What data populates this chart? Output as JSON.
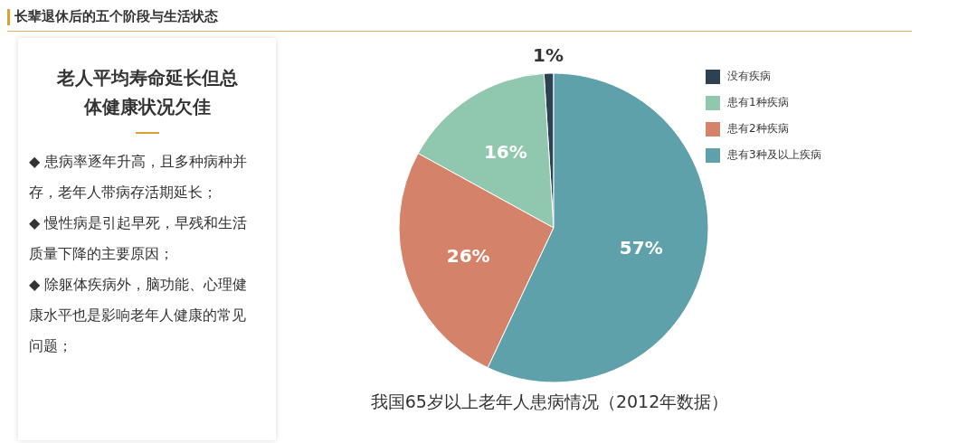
{
  "chart_data": [
    {
      "type": "other",
      "title": "长辈退休后的五个阶段与生活状态"
    },
    {
      "type": "other",
      "title": "老人平均寿命延长但总体健康状况欠佳",
      "annotations": [
        "◆ 患病率逐年升高，且多种病种并存，老年人带病存活期延长；",
        "◆ 慢性病是引起早死，早残和生活质量下降的主要原因；",
        "◆ 除躯体疾病外，脑功能、心理健康水平也是影响老年人健康的常见问题；"
      ]
    },
    {
      "type": "pie",
      "title": "我国65岁以上老年人患病情况（2012年数据）",
      "categories": [
        "没有疾病",
        "患有1种疾病",
        "患有2种疾病",
        "患有3种及以上疾病"
      ],
      "values": [
        1,
        16,
        26,
        57
      ],
      "colors": [
        "#2c4152",
        "#8fc8ae",
        "#d4836a",
        "#5fa1aa"
      ],
      "value_labels": [
        "1%",
        "16%",
        "26%",
        "57%"
      ],
      "legend": "top right"
    }
  ]
}
